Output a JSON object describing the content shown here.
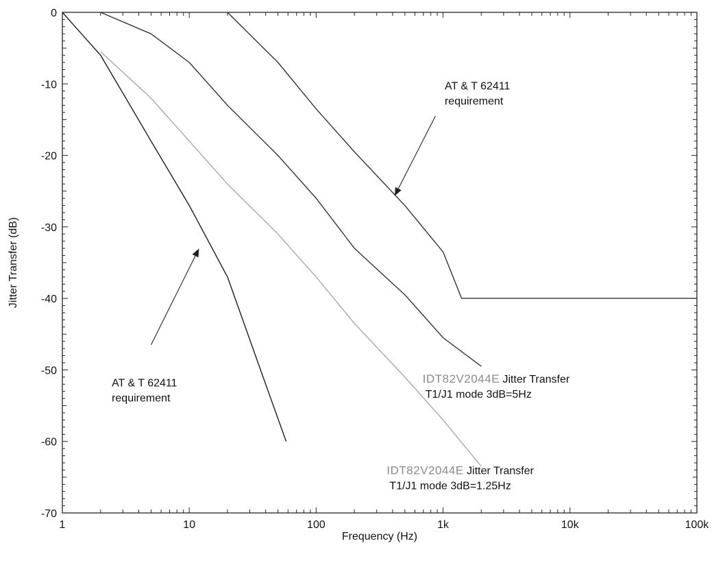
{
  "chart_data": {
    "type": "line",
    "title": "",
    "xlabel": "Frequency (Hz)",
    "ylabel": "Jitter Transfer (dB)",
    "xscale": "log",
    "xlim": [
      1,
      100000
    ],
    "ylim": [
      -70,
      0
    ],
    "x_ticks": [
      {
        "value": 1,
        "label": "1"
      },
      {
        "value": 10,
        "label": "10"
      },
      {
        "value": 100,
        "label": "100"
      },
      {
        "value": 1000,
        "label": "1k"
      },
      {
        "value": 10000,
        "label": "10k"
      },
      {
        "value": 100000,
        "label": "100k"
      }
    ],
    "y_ticks": [
      {
        "value": 0,
        "label": "0"
      },
      {
        "value": -10,
        "label": "-10"
      },
      {
        "value": -20,
        "label": "-20"
      },
      {
        "value": -30,
        "label": "-30"
      },
      {
        "value": -40,
        "label": "-40"
      },
      {
        "value": -50,
        "label": "-50"
      },
      {
        "value": -60,
        "label": "-60"
      },
      {
        "value": -70,
        "label": "-70"
      }
    ],
    "grid": false,
    "series": [
      {
        "key": "att_lower",
        "color": "#1a1a1a",
        "points": [
          [
            1,
            0
          ],
          [
            2,
            -6
          ],
          [
            5,
            -18
          ],
          [
            10,
            -27
          ],
          [
            20,
            -37
          ],
          [
            40,
            -52
          ],
          [
            58,
            -60
          ]
        ]
      },
      {
        "key": "idt_1_25hz",
        "color": "#a8a8a8",
        "points": [
          [
            2,
            -5.5
          ],
          [
            5,
            -12
          ],
          [
            10,
            -18
          ],
          [
            20,
            -24
          ],
          [
            50,
            -31
          ],
          [
            100,
            -37
          ],
          [
            200,
            -43.5
          ],
          [
            500,
            -51
          ],
          [
            1000,
            -57
          ],
          [
            2000,
            -63.5
          ]
        ]
      },
      {
        "key": "idt_5hz",
        "color": "#333333",
        "points": [
          [
            2,
            0
          ],
          [
            5,
            -3
          ],
          [
            10,
            -7
          ],
          [
            20,
            -13
          ],
          [
            50,
            -20
          ],
          [
            100,
            -26
          ],
          [
            200,
            -33
          ],
          [
            500,
            -39.5
          ],
          [
            1000,
            -45.5
          ],
          [
            2000,
            -49.5
          ]
        ]
      },
      {
        "key": "att_upper",
        "color": "#333333",
        "points": [
          [
            20,
            0
          ],
          [
            50,
            -7
          ],
          [
            100,
            -13.5
          ],
          [
            200,
            -19.5
          ],
          [
            500,
            -27
          ],
          [
            1000,
            -33.5
          ],
          [
            1400,
            -40
          ],
          [
            100000,
            -40
          ]
        ]
      }
    ],
    "annotations": [
      {
        "key": "att_upper_label",
        "lines": [
          "AT & T 62411",
          "requirement"
        ],
        "x": 1030,
        "y": -10.8,
        "arrow_from": [
          870,
          -14.5
        ],
        "arrow_to": [
          420,
          -25.5
        ]
      },
      {
        "key": "att_lower_label",
        "lines": [
          "AT & T 62411",
          "requirement"
        ],
        "x": 2.45,
        "y": -52.3,
        "arrow_from": [
          5,
          -46.5
        ],
        "arrow_to": [
          11.8,
          -33.2
        ]
      },
      {
        "key": "idt_5hz_label",
        "prefix": "IDT82V2044E",
        "suffix": " Jitter Transfer",
        "line2": "T1/J1 mode 3dB=5Hz",
        "x": 690,
        "y": -51.8
      },
      {
        "key": "idt_1_25hz_label",
        "prefix": "IDT82V2044E",
        "suffix": " Jitter Transfer",
        "line2": "T1/J1 mode 3dB=1.25Hz",
        "x": 360,
        "y": -64.6
      }
    ]
  }
}
